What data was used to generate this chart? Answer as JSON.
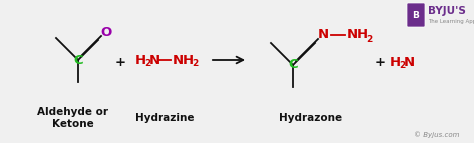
{
  "bg_color": "#f0f0f0",
  "green": "#22bb22",
  "red": "#cc0000",
  "purple": "#9900aa",
  "black": "#111111",
  "gray": "#888888",
  "byju_purple": "#6b2d8b",
  "label1": "Aldehyde or\nKetone",
  "label2": "Hydrazine",
  "label3": "Hydrazone",
  "watermark": "© Byjus.com"
}
